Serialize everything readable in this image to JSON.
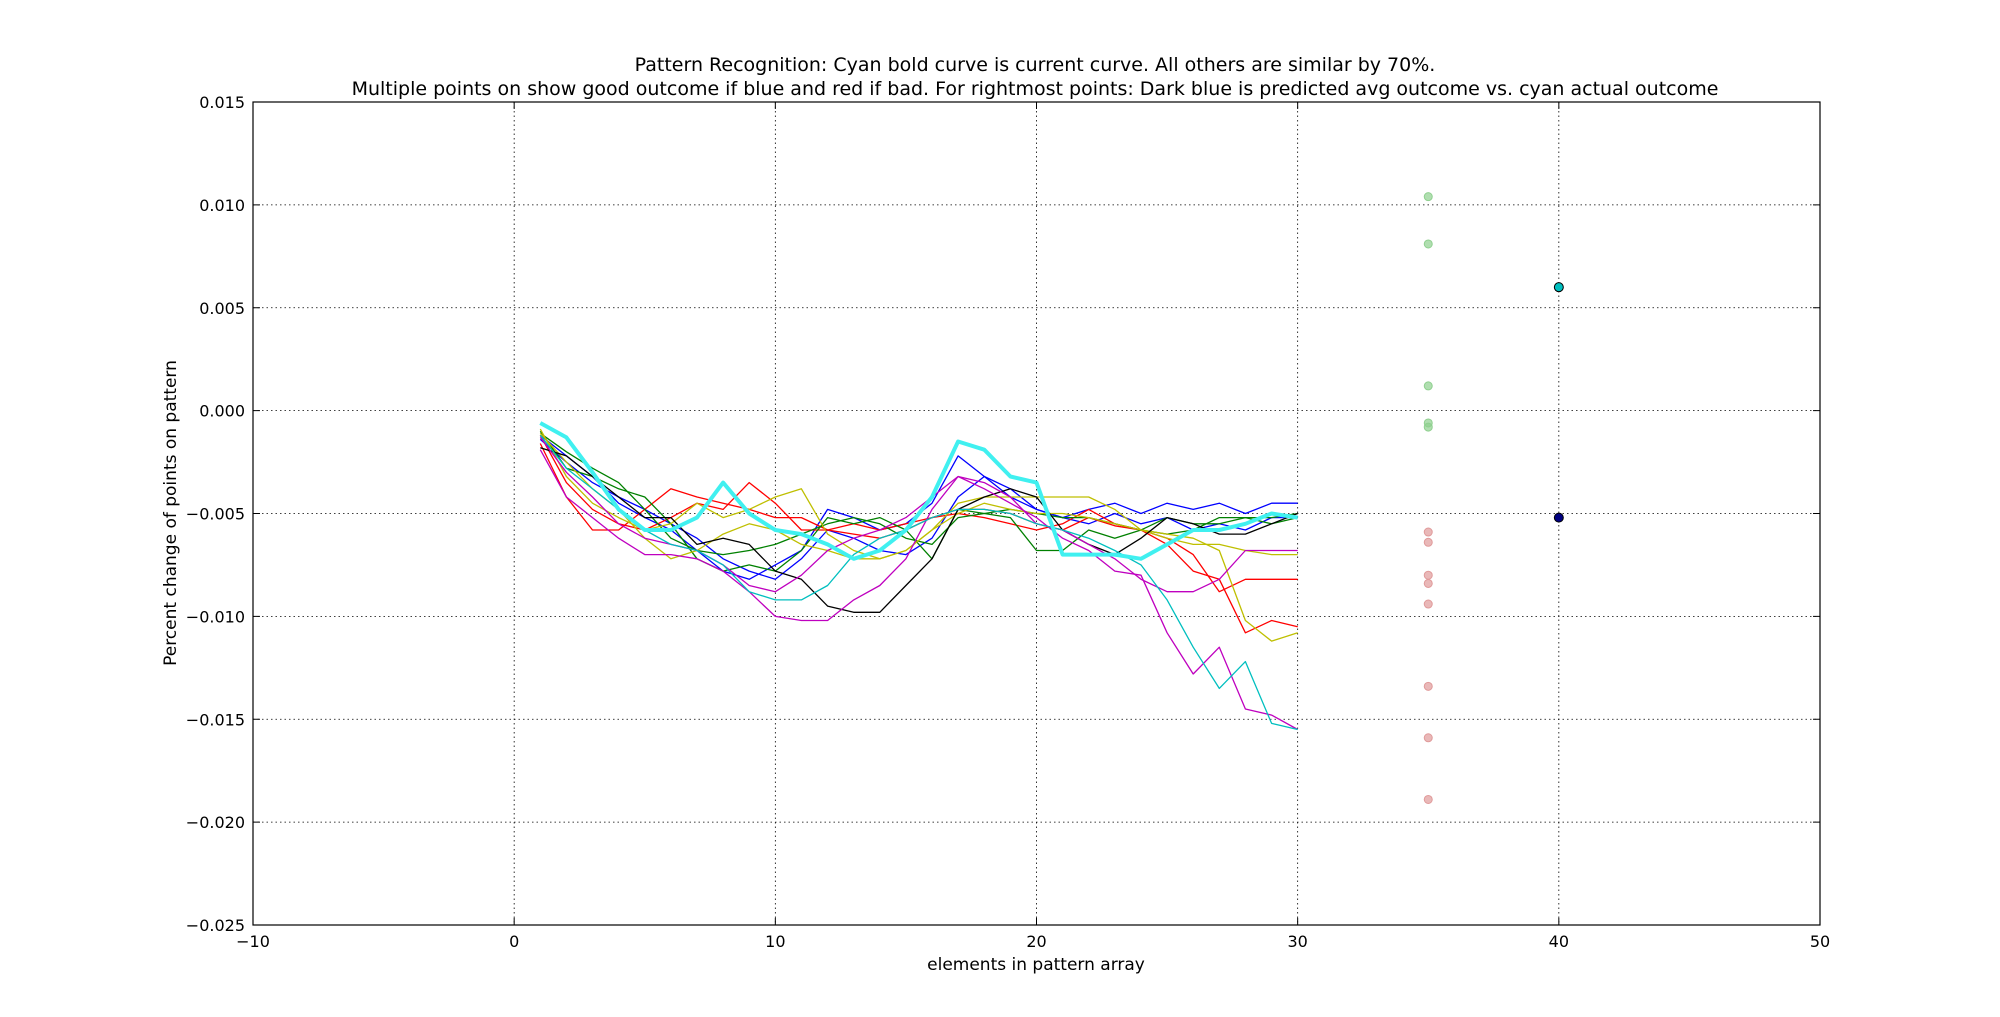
{
  "chart_data": {
    "type": "line",
    "title": "Pattern Recognition: Cyan bold curve is current curve. All others are similar by 70%.",
    "subtitle": "Multiple points on show good outcome if blue and red if bad. For rightmost points: Dark blue is predicted avg outcome vs. cyan actual outcome",
    "xlabel": "elements in pattern array",
    "ylabel": "Percent change of points on pattern",
    "xlim": [
      -10,
      50
    ],
    "ylim": [
      -0.025,
      0.015
    ],
    "grid": true,
    "xticks": [
      "−10",
      "0",
      "10",
      "20",
      "30",
      "40",
      "50"
    ],
    "yticks": [
      "−0.025",
      "−0.020",
      "−0.015",
      "−0.010",
      "−0.005",
      "0.000",
      "0.005",
      "0.010",
      "0.015"
    ],
    "x": [
      1,
      2,
      3,
      4,
      5,
      6,
      7,
      8,
      9,
      10,
      11,
      12,
      13,
      14,
      15,
      16,
      17,
      18,
      19,
      20,
      21,
      22,
      23,
      24,
      25,
      26,
      27,
      28,
      29,
      30
    ],
    "series": [
      {
        "color": "#0000ff",
        "width": 1.3,
        "values": [
          -0.0012,
          -0.0022,
          -0.0032,
          -0.0045,
          -0.0052,
          -0.0058,
          -0.0068,
          -0.0078,
          -0.0082,
          -0.0075,
          -0.0068,
          -0.0048,
          -0.0052,
          -0.0058,
          -0.0055,
          -0.0045,
          -0.0022,
          -0.0032,
          -0.0042,
          -0.0048,
          -0.0052,
          -0.0048,
          -0.0045,
          -0.005,
          -0.0045,
          -0.0048,
          -0.0045,
          -0.005,
          -0.0045,
          -0.0045
        ]
      },
      {
        "color": "#0000ff",
        "width": 1.3,
        "values": [
          -0.0014,
          -0.0025,
          -0.0035,
          -0.0042,
          -0.0048,
          -0.0055,
          -0.0062,
          -0.0072,
          -0.0078,
          -0.0082,
          -0.0072,
          -0.0058,
          -0.0062,
          -0.0068,
          -0.007,
          -0.0062,
          -0.0042,
          -0.0032,
          -0.0038,
          -0.0048,
          -0.0052,
          -0.0055,
          -0.005,
          -0.0055,
          -0.0052,
          -0.0058,
          -0.0055,
          -0.0058,
          -0.0052,
          -0.0052
        ]
      },
      {
        "color": "#ff0000",
        "width": 1.3,
        "values": [
          -0.0012,
          -0.0035,
          -0.0048,
          -0.0055,
          -0.0058,
          -0.0052,
          -0.0045,
          -0.0048,
          -0.0035,
          -0.0045,
          -0.0058,
          -0.0058,
          -0.0055,
          -0.0058,
          -0.0055,
          -0.0052,
          -0.005,
          -0.0052,
          -0.0055,
          -0.0058,
          -0.0055,
          -0.0048,
          -0.0055,
          -0.0058,
          -0.0065,
          -0.0078,
          -0.0082,
          -0.0108,
          -0.0102,
          -0.0105
        ]
      },
      {
        "color": "#ff0000",
        "width": 1.3,
        "values": [
          -0.0016,
          -0.0042,
          -0.0058,
          -0.0058,
          -0.0048,
          -0.0038,
          -0.0042,
          -0.0045,
          -0.0048,
          -0.0052,
          -0.0052,
          -0.0058,
          -0.006,
          -0.0062,
          -0.0058,
          -0.0052,
          -0.0048,
          -0.0048,
          -0.005,
          -0.0055,
          -0.0058,
          -0.0052,
          -0.0056,
          -0.0058,
          -0.0062,
          -0.007,
          -0.0088,
          -0.0082,
          -0.0082,
          -0.0082
        ]
      },
      {
        "color": "#008000",
        "width": 1.3,
        "values": [
          -0.001,
          -0.0028,
          -0.0032,
          -0.0038,
          -0.0042,
          -0.0055,
          -0.0072,
          -0.0078,
          -0.0075,
          -0.0078,
          -0.0068,
          -0.0052,
          -0.0055,
          -0.0052,
          -0.0058,
          -0.0072,
          -0.0048,
          -0.005,
          -0.0052,
          -0.0068,
          -0.0068,
          -0.0058,
          -0.0062,
          -0.0058,
          -0.0052,
          -0.0055,
          -0.0055,
          -0.0052,
          -0.0055,
          -0.0052
        ]
      },
      {
        "color": "#008000",
        "width": 1.3,
        "values": [
          -0.0011,
          -0.002,
          -0.0028,
          -0.0035,
          -0.0048,
          -0.0062,
          -0.0068,
          -0.007,
          -0.0068,
          -0.0065,
          -0.006,
          -0.0055,
          -0.0052,
          -0.0055,
          -0.0062,
          -0.0065,
          -0.0052,
          -0.005,
          -0.0048,
          -0.005,
          -0.0052,
          -0.0052,
          -0.0055,
          -0.0058,
          -0.006,
          -0.0058,
          -0.0052,
          -0.0052,
          -0.0052,
          -0.005
        ]
      },
      {
        "color": "#bfbf00",
        "width": 1.3,
        "values": [
          -0.0009,
          -0.0032,
          -0.0045,
          -0.0052,
          -0.0058,
          -0.0055,
          -0.0045,
          -0.0052,
          -0.0048,
          -0.0042,
          -0.0038,
          -0.006,
          -0.0068,
          -0.0072,
          -0.0068,
          -0.0058,
          -0.0045,
          -0.0042,
          -0.0042,
          -0.0042,
          -0.0042,
          -0.0042,
          -0.0048,
          -0.0058,
          -0.006,
          -0.0062,
          -0.0068,
          -0.0102,
          -0.0112,
          -0.0108
        ]
      },
      {
        "color": "#bfbf00",
        "width": 1.3,
        "values": [
          -0.0011,
          -0.0025,
          -0.0038,
          -0.0048,
          -0.0062,
          -0.0072,
          -0.0068,
          -0.006,
          -0.0055,
          -0.0058,
          -0.0065,
          -0.0068,
          -0.0072,
          -0.0072,
          -0.0068,
          -0.0058,
          -0.005,
          -0.0045,
          -0.0048,
          -0.005,
          -0.005,
          -0.0052,
          -0.0055,
          -0.0058,
          -0.0062,
          -0.0065,
          -0.0065,
          -0.0068,
          -0.007,
          -0.007
        ]
      },
      {
        "color": "#000000",
        "width": 1.3,
        "values": [
          -0.0018,
          -0.0022,
          -0.0032,
          -0.0042,
          -0.0052,
          -0.0052,
          -0.0065,
          -0.0062,
          -0.0065,
          -0.0078,
          -0.0082,
          -0.0095,
          -0.0098,
          -0.0098,
          -0.0085,
          -0.0072,
          -0.0048,
          -0.0042,
          -0.0038,
          -0.0042,
          -0.0058,
          -0.0065,
          -0.007,
          -0.0062,
          -0.0052,
          -0.0055,
          -0.006,
          -0.006,
          -0.0055,
          -0.005
        ]
      },
      {
        "color": "#bf00bf",
        "width": 1.3,
        "values": [
          -0.0019,
          -0.0042,
          -0.0052,
          -0.0062,
          -0.007,
          -0.007,
          -0.0072,
          -0.0078,
          -0.0088,
          -0.01,
          -0.0102,
          -0.0102,
          -0.0092,
          -0.0085,
          -0.0072,
          -0.0048,
          -0.0032,
          -0.0038,
          -0.0045,
          -0.0052,
          -0.0062,
          -0.0068,
          -0.0078,
          -0.008,
          -0.0108,
          -0.0128,
          -0.0115,
          -0.0145,
          -0.0148,
          -0.0155
        ]
      },
      {
        "color": "#bf00bf",
        "width": 1.3,
        "values": [
          -0.0013,
          -0.003,
          -0.0042,
          -0.0055,
          -0.0062,
          -0.0065,
          -0.0068,
          -0.0075,
          -0.0085,
          -0.0088,
          -0.008,
          -0.0068,
          -0.0062,
          -0.0058,
          -0.0052,
          -0.0042,
          -0.0032,
          -0.0035,
          -0.0042,
          -0.0055,
          -0.0058,
          -0.0065,
          -0.0072,
          -0.0082,
          -0.0088,
          -0.0088,
          -0.0082,
          -0.0068,
          -0.0068,
          -0.0068
        ]
      },
      {
        "color": "#00bfbf",
        "width": 1.3,
        "values": [
          -0.0012,
          -0.0028,
          -0.0038,
          -0.0048,
          -0.0058,
          -0.0065,
          -0.0068,
          -0.0075,
          -0.0088,
          -0.0092,
          -0.0092,
          -0.0085,
          -0.007,
          -0.0062,
          -0.0058,
          -0.0052,
          -0.0048,
          -0.0048,
          -0.005,
          -0.0055,
          -0.0058,
          -0.0062,
          -0.0068,
          -0.0075,
          -0.0092,
          -0.0115,
          -0.0135,
          -0.0122,
          -0.0152,
          -0.0155
        ]
      },
      {
        "color": "#40f0f0",
        "width": 4,
        "values": [
          -0.0006,
          -0.0013,
          -0.003,
          -0.0048,
          -0.0058,
          -0.0058,
          -0.0052,
          -0.0035,
          -0.005,
          -0.0058,
          -0.006,
          -0.0065,
          -0.0072,
          -0.0068,
          -0.0058,
          -0.0042,
          -0.0015,
          -0.0019,
          -0.0032,
          -0.0035,
          -0.007,
          -0.007,
          -0.007,
          -0.0072,
          -0.0065,
          -0.0058,
          -0.0058,
          -0.0055,
          -0.005,
          -0.0052
        ]
      }
    ],
    "outcome_points": [
      {
        "x": 35,
        "y": 0.0104,
        "color": "#8fd08f"
      },
      {
        "x": 35,
        "y": 0.0081,
        "color": "#8fd08f"
      },
      {
        "x": 35,
        "y": 0.0012,
        "color": "#8fd08f"
      },
      {
        "x": 35,
        "y": -0.0006,
        "color": "#8fd08f"
      },
      {
        "x": 35,
        "y": -0.0008,
        "color": "#8fd08f"
      },
      {
        "x": 35,
        "y": -0.0059,
        "color": "#e09a9a"
      },
      {
        "x": 35,
        "y": -0.0064,
        "color": "#e09a9a"
      },
      {
        "x": 35,
        "y": -0.008,
        "color": "#e09a9a"
      },
      {
        "x": 35,
        "y": -0.0084,
        "color": "#e09a9a"
      },
      {
        "x": 35,
        "y": -0.0094,
        "color": "#e09a9a"
      },
      {
        "x": 35,
        "y": -0.0134,
        "color": "#e09a9a"
      },
      {
        "x": 35,
        "y": -0.0159,
        "color": "#e09a9a"
      },
      {
        "x": 35,
        "y": -0.0189,
        "color": "#e09a9a"
      }
    ],
    "predicted_point": {
      "x": 40,
      "y": -0.0052,
      "color": "#000080"
    },
    "actual_point": {
      "x": 40,
      "y": 0.006,
      "color": "#00bfbf"
    }
  }
}
